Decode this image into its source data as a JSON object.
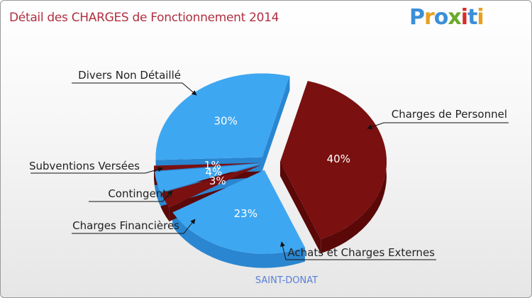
{
  "title": "Détail des CHARGES de Fonctionnement 2014",
  "logo": [
    "P",
    "r",
    "o",
    "x",
    "i",
    "t",
    "i"
  ],
  "colors": {
    "blue": "#3ea7f2",
    "blue_side": "#2a86d0",
    "dark_red": "#7a1010",
    "dark_red_side": "#5a0808"
  },
  "chart_data": {
    "type": "pie",
    "subtitle": "SAINT-DONAT",
    "slices": [
      {
        "label": "Charges de Personnel",
        "value": 40,
        "value_label": "40%",
        "color": "#7a1010"
      },
      {
        "label": "Achats et Charges Externes",
        "value": 23,
        "value_label": "23%",
        "color": "#3ea7f2"
      },
      {
        "label": "Charges Financières",
        "value": 3,
        "value_label": "3%",
        "color": "#7a1010"
      },
      {
        "label": "Contingents",
        "value": 4,
        "value_label": "4%",
        "color": "#3ea7f2"
      },
      {
        "label": "Subventions Versées",
        "value": 1,
        "value_label": "1%",
        "color": "#7a1010"
      },
      {
        "label": "Divers Non Détaillé",
        "value": 30,
        "value_label": "30%",
        "color": "#3ea7f2"
      }
    ]
  }
}
